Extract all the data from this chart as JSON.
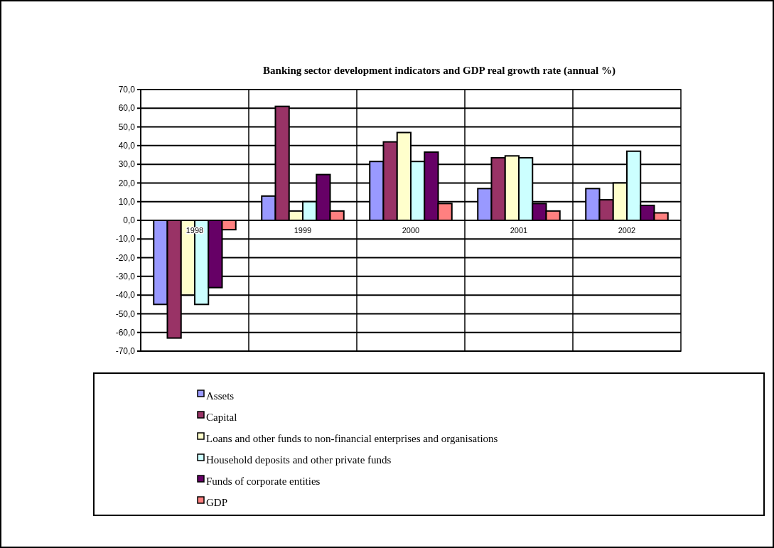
{
  "chart_data": {
    "type": "bar",
    "title": "Banking sector development indicators and GDP real growth rate (annual %)",
    "categories": [
      "1998",
      "1999",
      "2000",
      "2001",
      "2002"
    ],
    "series": [
      {
        "name": "Assets",
        "color": "#9999ff",
        "values": [
          -45,
          13,
          31.5,
          17,
          17
        ]
      },
      {
        "name": "Capital",
        "color": "#993366",
        "values": [
          -63,
          61,
          42,
          33.5,
          11
        ]
      },
      {
        "name": "Loans and other funds to non-financial enterprises and organisations",
        "color": "#ffffcc",
        "values": [
          -40,
          5,
          47,
          34.5,
          20
        ]
      },
      {
        "name": "Household deposits and other private funds",
        "color": "#ccffff",
        "values": [
          -45,
          10,
          31.5,
          33.5,
          37
        ]
      },
      {
        "name": "Funds of corporate entities",
        "color": "#660066",
        "values": [
          -36,
          24.5,
          36.5,
          9,
          8
        ]
      },
      {
        "name": "GDP",
        "color": "#ff8080",
        "values": [
          -5,
          5,
          9,
          5,
          4
        ]
      }
    ],
    "ylim": [
      -70,
      70
    ],
    "yticks": [
      {
        "value": -70,
        "label": "-70,0"
      },
      {
        "value": -60,
        "label": "-60,0"
      },
      {
        "value": -50,
        "label": "-50,0"
      },
      {
        "value": -40,
        "label": "-40,0"
      },
      {
        "value": -30,
        "label": "-30,0"
      },
      {
        "value": -20,
        "label": "-20,0"
      },
      {
        "value": -10,
        "label": "-10,0"
      },
      {
        "value": 0,
        "label": "0,0"
      },
      {
        "value": 10,
        "label": "10,0"
      },
      {
        "value": 20,
        "label": "20,0"
      },
      {
        "value": 30,
        "label": "30,0"
      },
      {
        "value": 40,
        "label": "40,0"
      },
      {
        "value": 50,
        "label": "50,0"
      },
      {
        "value": 60,
        "label": "60,0"
      },
      {
        "value": 70,
        "label": "70,0"
      }
    ],
    "grid": true,
    "legend": "bottom"
  }
}
